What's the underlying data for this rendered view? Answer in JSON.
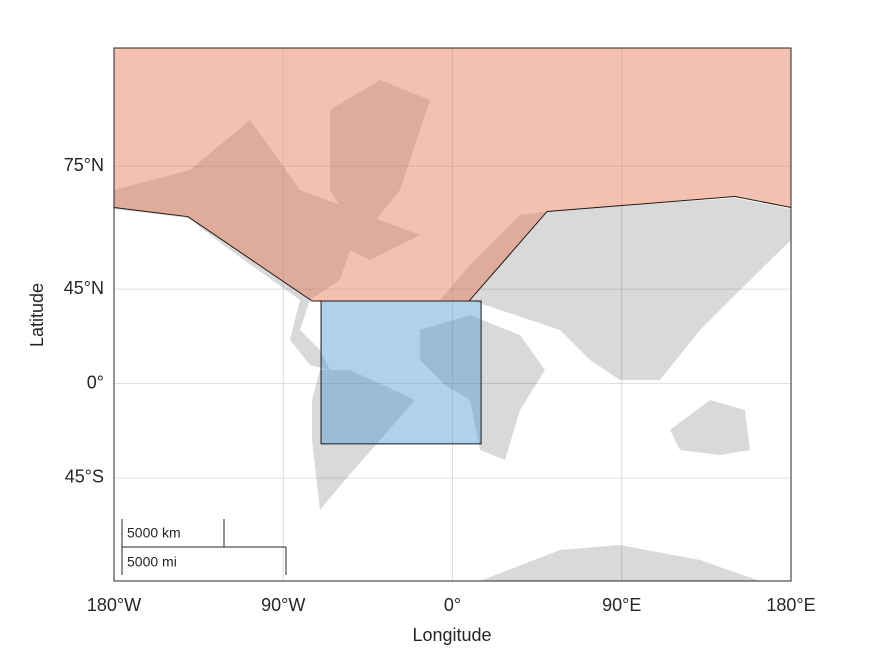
{
  "chart_data": {
    "type": "geo-regions",
    "xlabel": "Longitude",
    "ylabel": "Latitude",
    "xlim": [
      -180,
      180
    ],
    "ylim": [
      -72,
      85
    ],
    "xticks": [
      {
        "value": -180,
        "label": "180°W"
      },
      {
        "value": -90,
        "label": "90°W"
      },
      {
        "value": 0,
        "label": "0°"
      },
      {
        "value": 90,
        "label": "90°E"
      },
      {
        "value": 180,
        "label": "180°E"
      }
    ],
    "yticks": [
      {
        "value": 75,
        "label": "75°N"
      },
      {
        "value": 45,
        "label": "45°N"
      },
      {
        "value": 0,
        "label": "0°"
      },
      {
        "value": -45,
        "label": "45°S"
      }
    ],
    "grid": true,
    "scale_bar": [
      "5000 km",
      "5000 mi"
    ],
    "regions": [
      {
        "color": "#e6764f",
        "lon": [
          -180,
          -180,
          -140.6,
          -74.7,
          8.8,
          50.3,
          150.2,
          180,
          180
        ],
        "lat": [
          85,
          68.1,
          66.2,
          40.3,
          40.3,
          67.3,
          70.2,
          68.1,
          85
        ]
      },
      {
        "color": "#4d9ad4",
        "lon": [
          -69.9,
          15.2,
          15.2,
          -69.9
        ],
        "lat": [
          40.3,
          40.3,
          -30.7,
          -30.7
        ]
      }
    ]
  }
}
